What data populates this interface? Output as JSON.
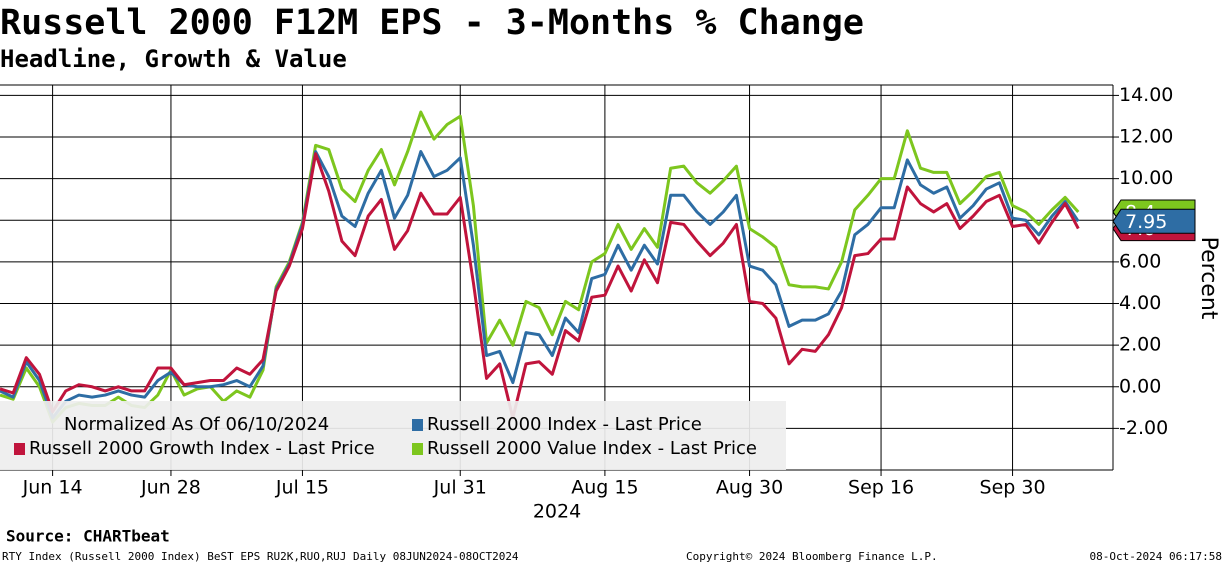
{
  "chart_data": {
    "type": "line",
    "title": "Russell 2000 F12M EPS - 3-Months % Change",
    "subtitle": "Headline, Growth & Value",
    "xlabel": "2024",
    "ylabel": "Percent",
    "note": "Normalized As Of 06/10/2024",
    "source": "Source: CHARTbeat",
    "footer": [
      "RTY Index (Russell 2000 Index) BeST EPS RU2K,RUO,RUJ  Daily 08JUN2024-08OCT2024",
      "Copyright© 2024 Bloomberg Finance L.P.",
      "08-Oct-2024 06:17:58"
    ],
    "legend": "lower left",
    "grid": true,
    "x": [
      "2024-06-10",
      "2024-06-11",
      "2024-06-12",
      "2024-06-13",
      "2024-06-14",
      "2024-06-17",
      "2024-06-18",
      "2024-06-20",
      "2024-06-21",
      "2024-06-24",
      "2024-06-25",
      "2024-06-26",
      "2024-06-27",
      "2024-06-28",
      "2024-07-01",
      "2024-07-02",
      "2024-07-03",
      "2024-07-05",
      "2024-07-08",
      "2024-07-09",
      "2024-07-10",
      "2024-07-11",
      "2024-07-12",
      "2024-07-15",
      "2024-07-16",
      "2024-07-17",
      "2024-07-18",
      "2024-07-19",
      "2024-07-22",
      "2024-07-23",
      "2024-07-24",
      "2024-07-25",
      "2024-07-26",
      "2024-07-29",
      "2024-07-30",
      "2024-07-31",
      "2024-08-01",
      "2024-08-02",
      "2024-08-05",
      "2024-08-06",
      "2024-08-07",
      "2024-08-08",
      "2024-08-09",
      "2024-08-12",
      "2024-08-13",
      "2024-08-14",
      "2024-08-15",
      "2024-08-16",
      "2024-08-19",
      "2024-08-20",
      "2024-08-21",
      "2024-08-22",
      "2024-08-23",
      "2024-08-26",
      "2024-08-27",
      "2024-08-28",
      "2024-08-29",
      "2024-08-30",
      "2024-09-03",
      "2024-09-04",
      "2024-09-05",
      "2024-09-06",
      "2024-09-09",
      "2024-09-10",
      "2024-09-11",
      "2024-09-12",
      "2024-09-13",
      "2024-09-16",
      "2024-09-17",
      "2024-09-18",
      "2024-09-19",
      "2024-09-20",
      "2024-09-23",
      "2024-09-24",
      "2024-09-25",
      "2024-09-26",
      "2024-09-27",
      "2024-09-30",
      "2024-10-01",
      "2024-10-02",
      "2024-10-03",
      "2024-10-04",
      "2024-10-07"
    ],
    "xticks": [
      {
        "value": "2024-06-14",
        "label": "Jun 14"
      },
      {
        "value": "2024-06-28",
        "label": "Jun 28"
      },
      {
        "value": "2024-07-15",
        "label": "Jul 15"
      },
      {
        "value": "2024-07-31",
        "label": "Jul 31"
      },
      {
        "value": "2024-08-15",
        "label": "Aug 15"
      },
      {
        "value": "2024-08-30",
        "label": "Aug 30"
      },
      {
        "value": "2024-09-16",
        "label": "Sep 16"
      },
      {
        "value": "2024-09-30",
        "label": "Sep 30"
      }
    ],
    "ylim": [
      -4,
      14.5
    ],
    "yticks": [
      {
        "value": -2,
        "label": "-2.00"
      },
      {
        "value": 0,
        "label": "0.00"
      },
      {
        "value": 2,
        "label": "2.00"
      },
      {
        "value": 4,
        "label": "4.00"
      },
      {
        "value": 6,
        "label": "6.00"
      },
      {
        "value": 8,
        "label": "8.00"
      },
      {
        "value": 10,
        "label": "10.00"
      },
      {
        "value": 12,
        "label": "12.00"
      },
      {
        "value": 14,
        "label": "14.00"
      }
    ],
    "series": [
      {
        "name": "Russell 2000 Value Index - Last Price",
        "color": "#7dc61e",
        "values": [
          -0.4,
          -0.6,
          0.9,
          0.0,
          -1.7,
          -1.0,
          -0.8,
          -0.9,
          -0.9,
          -0.5,
          -0.9,
          -1.0,
          -0.4,
          0.8,
          -0.4,
          -0.1,
          0.0,
          -0.7,
          -0.2,
          -0.5,
          0.8,
          4.8,
          6.0,
          7.9,
          11.6,
          11.4,
          9.5,
          8.9,
          10.4,
          11.4,
          9.7,
          11.3,
          13.2,
          11.9,
          12.6,
          13.0,
          8.7,
          2.1,
          3.2,
          2.0,
          4.1,
          3.8,
          2.5,
          4.1,
          3.7,
          6.0,
          6.4,
          7.8,
          6.6,
          7.6,
          6.7,
          10.5,
          10.6,
          9.8,
          9.3,
          9.9,
          10.6,
          7.6,
          7.2,
          6.7,
          4.9,
          4.8,
          4.8,
          4.7,
          6.0,
          8.5,
          9.2,
          10.0,
          10.0,
          12.3,
          10.5,
          10.3,
          10.3,
          8.8,
          9.4,
          10.1,
          10.3,
          8.7,
          8.4,
          7.8,
          8.5,
          9.1,
          8.4
        ]
      },
      {
        "name": "Russell 2000 Index - Last Price",
        "color": "#2e6da4",
        "values": [
          -0.2,
          -0.5,
          1.2,
          0.3,
          -1.5,
          -0.7,
          -0.4,
          -0.5,
          -0.4,
          -0.2,
          -0.4,
          -0.5,
          0.3,
          0.7,
          0.1,
          0.0,
          0.0,
          0.1,
          0.3,
          0.0,
          1.0,
          4.7,
          5.9,
          7.8,
          11.3,
          10.1,
          8.2,
          7.7,
          9.3,
          10.4,
          8.1,
          9.2,
          11.3,
          10.1,
          10.4,
          11.0,
          6.8,
          1.5,
          1.7,
          0.2,
          2.6,
          2.5,
          1.5,
          3.3,
          2.6,
          5.2,
          5.4,
          6.8,
          5.6,
          6.8,
          5.9,
          9.2,
          9.2,
          8.4,
          7.8,
          8.4,
          9.2,
          5.8,
          5.6,
          4.9,
          2.9,
          3.2,
          3.2,
          3.5,
          4.6,
          7.3,
          7.8,
          8.6,
          8.6,
          10.9,
          9.7,
          9.3,
          9.6,
          8.1,
          8.7,
          9.5,
          9.8,
          8.1,
          8.0,
          7.3,
          8.2,
          8.9,
          7.95
        ]
      },
      {
        "name": "Russell 2000 Growth Index - Last Price",
        "color": "#c0143c",
        "values": [
          -0.1,
          -0.3,
          1.4,
          0.6,
          -1.2,
          -0.2,
          0.1,
          0.0,
          -0.2,
          0.0,
          -0.2,
          -0.2,
          0.9,
          0.9,
          0.1,
          0.2,
          0.3,
          0.3,
          0.9,
          0.6,
          1.3,
          4.6,
          5.8,
          7.6,
          11.2,
          9.4,
          7.0,
          6.3,
          8.2,
          9.0,
          6.6,
          7.5,
          9.3,
          8.3,
          8.3,
          9.1,
          5.0,
          0.4,
          1.1,
          -1.5,
          1.1,
          1.2,
          0.6,
          2.7,
          2.2,
          4.3,
          4.4,
          5.8,
          4.6,
          6.1,
          5.0,
          7.9,
          7.8,
          7.0,
          6.3,
          6.9,
          7.8,
          4.1,
          4.0,
          3.3,
          1.1,
          1.8,
          1.7,
          2.5,
          3.8,
          6.3,
          6.4,
          7.1,
          7.1,
          9.6,
          8.8,
          8.4,
          8.8,
          7.6,
          8.2,
          8.9,
          9.2,
          7.7,
          7.8,
          6.9,
          7.9,
          8.8,
          7.6
        ]
      }
    ]
  }
}
